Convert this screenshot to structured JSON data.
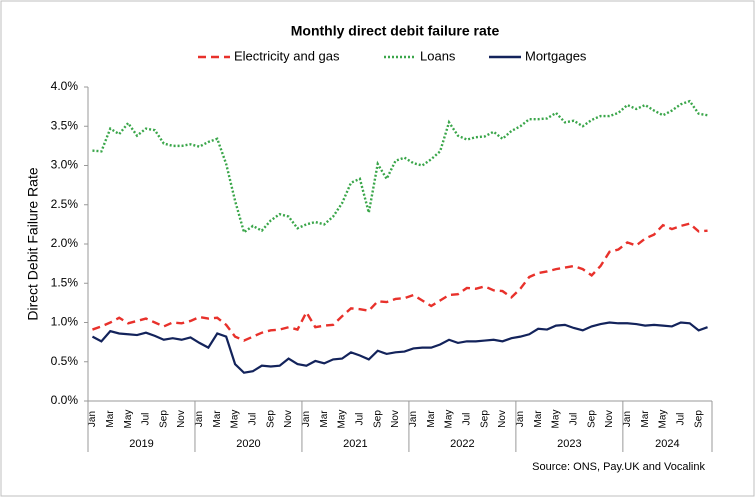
{
  "chart_data": {
    "type": "line",
    "title": "Monthly direct debit failure rate",
    "y_label": "Direct Debit Failure Rate",
    "source": "Source: ONS, Pay.UK and Vocalink",
    "categories": [
      "Jan",
      null,
      "Mar",
      null,
      "May",
      null,
      "Jul",
      null,
      "Sep",
      null,
      "Nov",
      null,
      "Jan",
      null,
      "Mar",
      null,
      "May",
      null,
      "Jul",
      null,
      "Sep",
      null,
      "Nov",
      null,
      "Jan",
      null,
      "Mar",
      null,
      "May",
      null,
      "Jul",
      null,
      "Sep",
      null,
      "Nov",
      null,
      "Jan",
      null,
      "Mar",
      null,
      "May",
      null,
      "Jul",
      null,
      "Sep",
      null,
      "Nov",
      null,
      "Jan",
      null,
      "Mar",
      null,
      "May",
      null,
      "Jul",
      null,
      "Sep",
      null,
      "Nov",
      null,
      "Jan",
      null,
      "Mar",
      null,
      "May",
      null,
      "Jul",
      null,
      "Sep",
      null
    ],
    "years": [
      "2019",
      "2020",
      "2021",
      "2022",
      "2023",
      "2024"
    ],
    "ylim": [
      0,
      4
    ],
    "yticks": [
      {
        "value": 0,
        "label": "0.0%"
      },
      {
        "value": 0.5,
        "label": "0.5%"
      },
      {
        "value": 1,
        "label": "1.0%"
      },
      {
        "value": 1.5,
        "label": "1.5%"
      },
      {
        "value": 2,
        "label": "2.0%"
      },
      {
        "value": 2.5,
        "label": "2.5%"
      },
      {
        "value": 3,
        "label": "3.0%"
      },
      {
        "value": 3.5,
        "label": "3.5%"
      },
      {
        "value": 4,
        "label": "4.0%"
      }
    ],
    "series": [
      {
        "name": "Electricity and gas",
        "color": "#e8312b",
        "style": "dashed",
        "values": [
          0.91,
          0.95,
          1.0,
          1.06,
          0.99,
          1.02,
          1.05,
          1.0,
          0.95,
          1.0,
          0.99,
          1.02,
          1.07,
          1.05,
          1.06,
          0.97,
          0.82,
          0.77,
          0.82,
          0.87,
          0.9,
          0.91,
          0.94,
          0.91,
          1.13,
          0.94,
          0.96,
          0.97,
          1.08,
          1.18,
          1.17,
          1.15,
          1.27,
          1.26,
          1.3,
          1.31,
          1.35,
          1.28,
          1.21,
          1.28,
          1.35,
          1.36,
          1.44,
          1.43,
          1.46,
          1.41,
          1.4,
          1.32,
          1.43,
          1.58,
          1.63,
          1.65,
          1.68,
          1.7,
          1.72,
          1.68,
          1.6,
          1.72,
          1.9,
          1.93,
          2.02,
          1.98,
          2.07,
          2.12,
          2.24,
          2.19,
          2.23,
          2.26,
          2.16,
          2.17
        ]
      },
      {
        "name": "Loans",
        "color": "#3aa64a",
        "style": "dotted",
        "values": [
          3.19,
          3.18,
          3.47,
          3.4,
          3.54,
          3.38,
          3.47,
          3.45,
          3.28,
          3.25,
          3.25,
          3.27,
          3.24,
          3.3,
          3.34,
          3.02,
          2.55,
          2.15,
          2.23,
          2.17,
          2.3,
          2.38,
          2.35,
          2.2,
          2.25,
          2.28,
          2.25,
          2.35,
          2.52,
          2.78,
          2.83,
          2.4,
          3.02,
          2.83,
          3.06,
          3.1,
          3.03,
          3.0,
          3.08,
          3.18,
          3.55,
          3.38,
          3.33,
          3.36,
          3.37,
          3.43,
          3.34,
          3.44,
          3.5,
          3.59,
          3.59,
          3.6,
          3.67,
          3.55,
          3.57,
          3.5,
          3.58,
          3.63,
          3.63,
          3.67,
          3.77,
          3.72,
          3.77,
          3.7,
          3.64,
          3.7,
          3.78,
          3.82,
          3.66,
          3.64
        ]
      },
      {
        "name": "Mortgages",
        "color": "#13235b",
        "style": "solid",
        "values": [
          0.82,
          0.76,
          0.89,
          0.86,
          0.85,
          0.84,
          0.87,
          0.83,
          0.78,
          0.8,
          0.78,
          0.81,
          0.74,
          0.68,
          0.86,
          0.82,
          0.47,
          0.36,
          0.38,
          0.45,
          0.44,
          0.45,
          0.54,
          0.47,
          0.45,
          0.51,
          0.48,
          0.53,
          0.54,
          0.62,
          0.58,
          0.53,
          0.64,
          0.6,
          0.62,
          0.63,
          0.67,
          0.68,
          0.68,
          0.72,
          0.78,
          0.74,
          0.76,
          0.76,
          0.77,
          0.78,
          0.76,
          0.8,
          0.82,
          0.85,
          0.92,
          0.91,
          0.96,
          0.97,
          0.93,
          0.9,
          0.95,
          0.98,
          1.0,
          0.99,
          0.99,
          0.98,
          0.96,
          0.97,
          0.96,
          0.95,
          1.0,
          0.99,
          0.9,
          0.94
        ]
      }
    ]
  }
}
